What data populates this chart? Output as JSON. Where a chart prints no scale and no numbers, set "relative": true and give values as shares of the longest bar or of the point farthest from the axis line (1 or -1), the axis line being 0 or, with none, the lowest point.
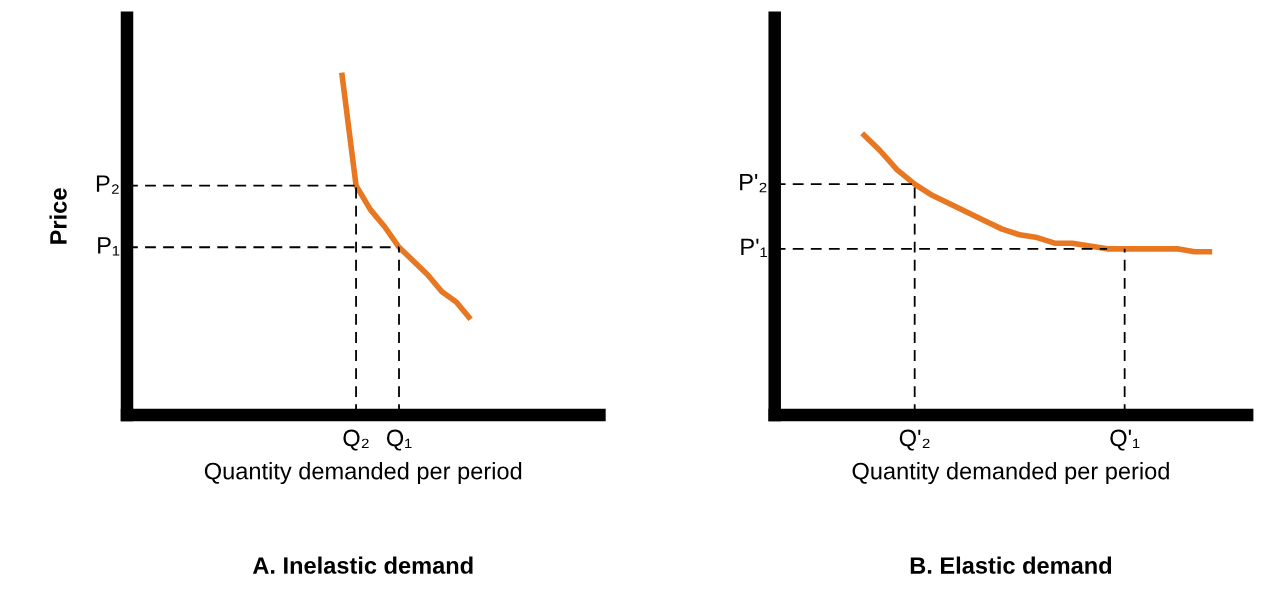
{
  "chart_data": [
    {
      "type": "line",
      "relative": true,
      "title": "A. Inelastic demand",
      "xlabel": "Quantity demanded per period",
      "ylabel": "Price",
      "categories": [
        null,
        null,
        null,
        null,
        null,
        null,
        null,
        null,
        null,
        null,
        null,
        null,
        null,
        null,
        null,
        null,
        "Q₂",
        null,
        null,
        "Q₁",
        null,
        null,
        null,
        null,
        null,
        null,
        null,
        null,
        null,
        null,
        null,
        null,
        null,
        null
      ],
      "series": [
        {
          "color": "#e87722",
          "values": [
            null,
            null,
            null,
            null,
            null,
            null,
            null,
            null,
            null,
            null,
            null,
            null,
            null,
            null,
            null,
            1,
            0.67,
            0.6,
            0.55,
            0.49,
            0.45,
            0.41,
            0.36,
            0.33,
            0.28,
            null,
            null,
            null,
            null,
            null,
            null,
            null,
            null,
            null
          ]
        }
      ],
      "ref_lines": [
        {
          "axis": "y",
          "value": 0.67,
          "label": "P₂",
          "line_style": "dashed",
          "color": "#000000"
        },
        {
          "axis": "y",
          "value": 0.49,
          "label": "P₁",
          "line_style": "dashed",
          "color": "#000000"
        },
        {
          "axis": "x",
          "value": "Q₂",
          "line_style": "dashed",
          "color": "#000000"
        },
        {
          "axis": "x",
          "value": "Q₁",
          "line_style": "dashed",
          "color": "#000000"
        }
      ]
    },
    {
      "type": "line",
      "relative": true,
      "title": "B. Elastic demand",
      "xlabel": "Quantity demanded per period",
      "categories": [
        null,
        null,
        null,
        null,
        null,
        null,
        null,
        null,
        "Q'₂",
        null,
        null,
        null,
        null,
        null,
        null,
        null,
        null,
        null,
        null,
        null,
        "Q'₁",
        null,
        null,
        null,
        null,
        null,
        null,
        null
      ],
      "series": [
        {
          "color": "#e87722",
          "values": [
            null,
            null,
            null,
            null,
            null,
            1,
            0.94,
            0.87,
            0.82,
            0.78,
            0.75,
            0.72,
            0.69,
            0.66,
            0.64,
            0.63,
            0.61,
            0.61,
            0.6,
            0.59,
            0.59,
            0.59,
            0.59,
            0.59,
            0.58,
            0.58,
            null,
            null
          ]
        }
      ],
      "ref_lines": [
        {
          "axis": "y",
          "value": 0.82,
          "label": "P'₂",
          "line_style": "dashed",
          "color": "#000000"
        },
        {
          "axis": "y",
          "value": 0.59,
          "label": "P'₁",
          "line_style": "dashed",
          "color": "#000000"
        },
        {
          "axis": "x",
          "value": "Q'₂",
          "line_style": "dashed",
          "color": "#000000"
        },
        {
          "axis": "x",
          "value": "Q'₁",
          "line_style": "dashed",
          "color": "#000000"
        }
      ]
    }
  ]
}
